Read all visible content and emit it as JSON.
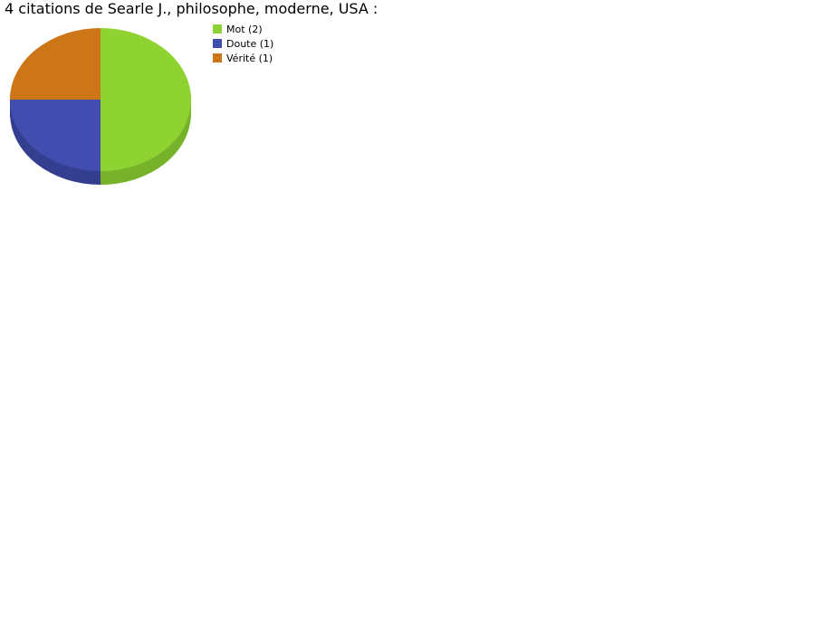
{
  "chart_data": {
    "type": "pie",
    "title": "4 citations de Searle J., philosophe, moderne, USA :",
    "slices": [
      {
        "label": "Mot (2)",
        "name": "Mot",
        "value": 2,
        "color": "#8ed331",
        "side_color": "#77b22a"
      },
      {
        "label": "Doute (1)",
        "name": "Doute",
        "value": 1,
        "color": "#414daf",
        "side_color": "#353f90"
      },
      {
        "label": "Vérité (1)",
        "name": "Vérité",
        "value": 1,
        "color": "#cd7618",
        "side_color": "#a96114"
      }
    ],
    "style": "3d",
    "legend_position": "top-right"
  }
}
